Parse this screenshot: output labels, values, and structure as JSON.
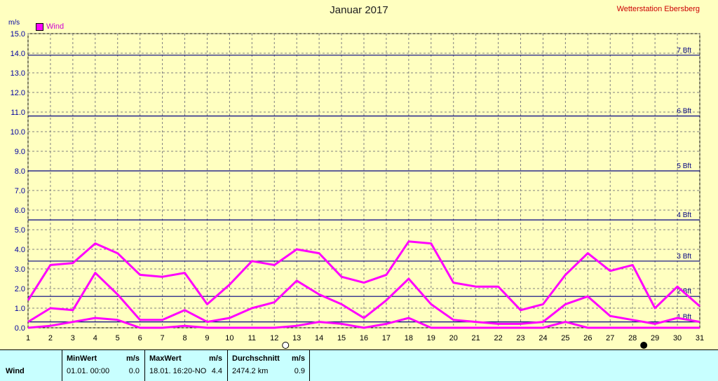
{
  "header": {
    "title": "Januar 2017",
    "station": "Wetterstation Ebersberg"
  },
  "legend": {
    "label": "Wind",
    "color": "#ff00ff"
  },
  "chart_data": {
    "type": "line",
    "title": "Januar 2017",
    "ylabel": "m/s",
    "xlabel": "",
    "ylim": [
      0,
      15
    ],
    "xlim": [
      1,
      31
    ],
    "grid": true,
    "legend_position": "top-left",
    "x": [
      1,
      2,
      3,
      4,
      5,
      6,
      7,
      8,
      9,
      10,
      11,
      12,
      13,
      14,
      15,
      16,
      17,
      18,
      19,
      20,
      21,
      22,
      23,
      24,
      25,
      26,
      27,
      28,
      29,
      30,
      31
    ],
    "xticks": [
      "1",
      "2",
      "3",
      "4",
      "5",
      "6",
      "7",
      "8",
      "9",
      "10",
      "11",
      "12",
      "13",
      "14",
      "15",
      "16",
      "17",
      "18",
      "19",
      "20",
      "21",
      "22",
      "23",
      "24",
      "25",
      "26",
      "27",
      "28",
      "29",
      "30",
      "31"
    ],
    "yticks": [
      "0.0",
      "1.0",
      "2.0",
      "3.0",
      "4.0",
      "5.0",
      "6.0",
      "7.0",
      "8.0",
      "9.0",
      "10.0",
      "11.0",
      "12.0",
      "13.0",
      "14.0",
      "15.0"
    ],
    "series": [
      {
        "name": "Wind",
        "role": "max",
        "values": [
          1.4,
          3.2,
          3.3,
          4.3,
          3.8,
          2.7,
          2.6,
          2.8,
          1.2,
          2.2,
          3.4,
          3.2,
          4.0,
          3.8,
          2.6,
          2.3,
          2.7,
          4.4,
          4.3,
          2.3,
          2.1,
          2.1,
          0.9,
          1.2,
          2.7,
          3.8,
          2.9,
          3.2,
          1.0,
          2.1,
          1.1
        ]
      },
      {
        "role": "avg",
        "values": [
          0.3,
          1.0,
          0.9,
          2.8,
          1.7,
          0.4,
          0.4,
          0.9,
          0.3,
          0.5,
          1.0,
          1.3,
          2.4,
          1.7,
          1.2,
          0.5,
          1.4,
          2.5,
          1.2,
          0.4,
          0.3,
          0.2,
          0.2,
          0.3,
          1.2,
          1.6,
          0.6,
          0.4,
          0.2,
          0.5,
          0.3
        ]
      },
      {
        "role": "min",
        "values": [
          0.0,
          0.1,
          0.3,
          0.5,
          0.4,
          0.0,
          0.0,
          0.1,
          0.0,
          0.0,
          0.0,
          0.0,
          0.1,
          0.3,
          0.2,
          0.0,
          0.2,
          0.5,
          0.0,
          0.0,
          0.0,
          0.0,
          0.0,
          0.0,
          0.3,
          0.0,
          0.0,
          0.0,
          0.0,
          0.0,
          0.0
        ]
      }
    ],
    "beaufort": [
      {
        "label": "1 Bft",
        "value": 0.3
      },
      {
        "label": "2 Bft",
        "value": 1.6
      },
      {
        "label": "3 Bft",
        "value": 3.4
      },
      {
        "label": "4 Bft",
        "value": 5.5
      },
      {
        "label": "5 Bft",
        "value": 8.0
      },
      {
        "label": "6 Bft",
        "value": 10.8
      },
      {
        "label": "7 Bft",
        "value": 13.9
      }
    ],
    "moon_markers": [
      {
        "day": 12,
        "phase": "full-moon"
      },
      {
        "day": 28,
        "phase": "new-moon"
      }
    ],
    "colors": {
      "series": "#ff00ff",
      "beaufort": "#000080",
      "grid": "#808080"
    }
  },
  "stats": {
    "row_label": "Wind",
    "min": {
      "header": "MinWert",
      "unit": "m/s",
      "date": "01.01.  00:00",
      "value": "0.0"
    },
    "max": {
      "header": "MaxWert",
      "unit": "m/s",
      "date": "18.01.  16:20-NO",
      "value": "4.4"
    },
    "avg": {
      "header": "Durchschnitt",
      "unit": "m/s",
      "distance": "2474.2 km",
      "value": "0.9"
    }
  }
}
